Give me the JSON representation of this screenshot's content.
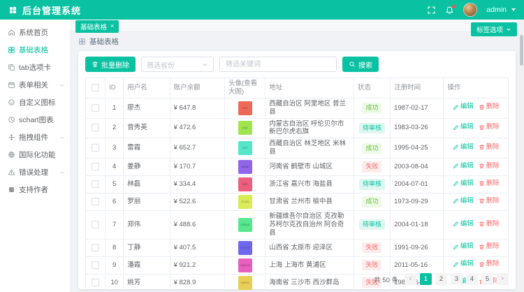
{
  "app": {
    "title": "后台管理系统",
    "user": "admin"
  },
  "colors": {
    "accent": "#0ac2a2",
    "status": {
      "success": {
        "bg": "#eef9e8",
        "text": "#67c23a"
      },
      "pending": {
        "bg": "#dff7f1",
        "text": "#0ac2a2"
      },
      "fail": {
        "bg": "#fdecec",
        "text": "#f56c6c"
      }
    }
  },
  "sidebar": {
    "items": [
      {
        "label": "系统首页",
        "icon": "home-icon"
      },
      {
        "label": "基础表格",
        "icon": "table-icon",
        "active": true
      },
      {
        "label": "tab选项卡",
        "icon": "copy-icon"
      },
      {
        "label": "表单相关",
        "icon": "calendar-icon",
        "expandable": true
      },
      {
        "label": "自定义图标",
        "icon": "smile-icon"
      },
      {
        "label": "schart图表",
        "icon": "chart-icon"
      },
      {
        "label": "拖拽组件",
        "icon": "drag-icon",
        "expandable": true
      },
      {
        "label": "国际化功能",
        "icon": "globe-icon"
      },
      {
        "label": "错误处理",
        "icon": "warning-icon",
        "expandable": true
      },
      {
        "label": "支持作者",
        "icon": "support-icon"
      }
    ]
  },
  "tabs": {
    "active_tab": "基础表格",
    "close": "×",
    "options_button": "标签选项"
  },
  "breadcrumb": {
    "title": "基础表格"
  },
  "toolbar": {
    "batch_delete": "批量删除",
    "province_placeholder": "筛选省份",
    "keyword_placeholder": "筛选关键词",
    "search": "搜索"
  },
  "table": {
    "columns": [
      "ID",
      "用户名",
      "账户余额",
      "头像(查看大图)",
      "地址",
      "状态",
      "注册时间",
      "操作"
    ],
    "edit_label": "编辑",
    "delete_label": "删除",
    "rows": [
      {
        "id": "1",
        "name": "廖杰",
        "balance": "¥ 647.8",
        "avatar_color": "#ed6a5a",
        "avatar_text": "ectu",
        "address": "西藏自治区 阿里地区 普兰县",
        "status": "成功",
        "status_type": "success",
        "date": "1987-02-17"
      },
      {
        "id": "2",
        "name": "曾秀英",
        "balance": "¥ 472.6",
        "avatar_color": "#a0e54f",
        "avatar_text": "gxgr",
        "address": "内蒙古自治区 呼伦贝尔市 新巴尔虎右旗",
        "status": "待审核",
        "status_type": "pending",
        "date": "1983-03-26"
      },
      {
        "id": "3",
        "name": "雷霞",
        "balance": "¥ 652.7",
        "avatar_color": "#55e6c9",
        "avatar_text": "hjch",
        "address": "西藏自治区 林芝地区 米林县",
        "status": "成功",
        "status_type": "success",
        "date": "1995-04-25"
      },
      {
        "id": "4",
        "name": "姜静",
        "balance": "¥ 170.7",
        "avatar_color": "#8f66ea",
        "avatar_text": "ateap",
        "address": "河南省 鹤壁市 山城区",
        "status": "失败",
        "status_type": "fail",
        "date": "2003-08-04"
      },
      {
        "id": "5",
        "name": "林磊",
        "balance": "¥ 334.4",
        "avatar_color": "#ec5f7e",
        "avatar_text": "cgfh",
        "address": "浙江省 嘉兴市 海盐县",
        "status": "待审核",
        "status_type": "pending",
        "date": "2004-07-01"
      },
      {
        "id": "6",
        "name": "罗丽",
        "balance": "¥ 522.6",
        "avatar_color": "#d9ec57",
        "avatar_text": "xmjdx",
        "address": "甘肃省 兰州市 榆中县",
        "status": "成功",
        "status_type": "success",
        "date": "1973-09-29"
      },
      {
        "id": "7",
        "name": "郑伟",
        "balance": "¥ 488.6",
        "avatar_color": "#57e88f",
        "avatar_text": "mfwqd",
        "address": "新疆维吾尔自治区 克孜勒苏柯尔克孜自治州 阿合奇县",
        "status": "待审核",
        "status_type": "pending",
        "date": "2004-01-18"
      },
      {
        "id": "8",
        "name": "丁静",
        "balance": "¥ 407.5",
        "avatar_color": "#6f68ee",
        "avatar_text": "mwbvb",
        "address": "山西省 太原市 迎泽区",
        "status": "失败",
        "status_type": "fail",
        "date": "1991-09-26"
      },
      {
        "id": "9",
        "name": "潘霞",
        "balance": "¥ 921.2",
        "avatar_color": "#e760bd",
        "avatar_text": "mgmoe",
        "address": "上海 上海市 黄浦区",
        "status": "失败",
        "status_type": "fail",
        "date": "2011-05-16"
      },
      {
        "id": "10",
        "name": "姚芳",
        "balance": "¥ 828.9",
        "avatar_color": "#e9cf56",
        "avatar_text": "egkna",
        "address": "海南省 三沙市 西沙群岛",
        "status": "失败",
        "status_type": "fail",
        "date": "1980-06-23"
      }
    ]
  },
  "pagination": {
    "total": "共 50 条",
    "pages": [
      "1",
      "2",
      "3",
      "4",
      "5"
    ],
    "active": "1",
    "prev_icon": "‹",
    "next_icon": "›"
  }
}
